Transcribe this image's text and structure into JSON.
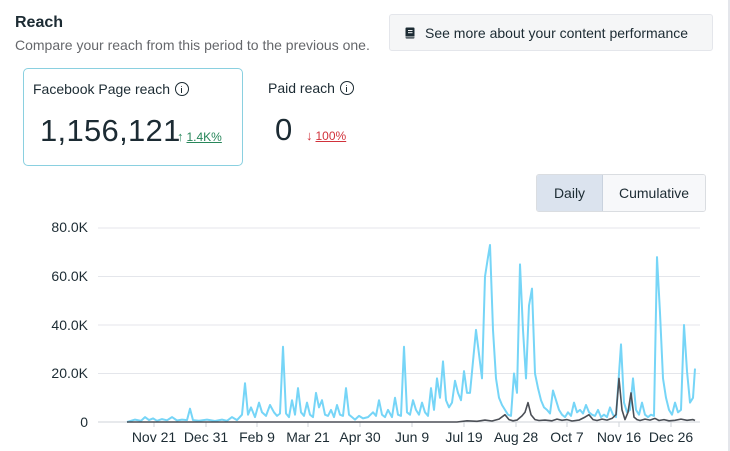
{
  "header": {
    "title": "Reach",
    "subtitle": "Compare your reach from this period to the previous one.",
    "see_more_label": "See more about your content performance"
  },
  "metrics": [
    {
      "label": "Facebook Page reach",
      "value": "1,156,121",
      "delta": "1.4K%",
      "direction": "up",
      "selected": true
    },
    {
      "label": "Paid reach",
      "value": "0",
      "delta": "100%",
      "direction": "down",
      "selected": false
    }
  ],
  "view_toggle": {
    "options": [
      "Daily",
      "Cumulative"
    ],
    "selected": "Daily"
  },
  "colors": {
    "current_series": "#76d5f7",
    "previous_series": "#4b4f56",
    "up": "#27865a",
    "down": "#d1323b"
  },
  "chart_data": {
    "type": "line",
    "y_ticks": [
      "80.0K",
      "60.0K",
      "40.0K",
      "20.0K",
      "0"
    ],
    "ylim": [
      0,
      80000
    ],
    "x_ticks": [
      "Nov 21",
      "Dec 31",
      "Feb 9",
      "Mar 21",
      "Apr 30",
      "Jun 9",
      "Jul 19",
      "Aug 28",
      "Oct 7",
      "Nov 16",
      "Dec 26"
    ],
    "grid": true,
    "series": [
      {
        "color": "#76d5f7",
        "points": [
          [
            0,
            0
          ],
          [
            8,
            1000
          ],
          [
            14,
            500
          ],
          [
            18,
            2000
          ],
          [
            22,
            800
          ],
          [
            26,
            1500
          ],
          [
            30,
            500
          ],
          [
            35,
            1200
          ],
          [
            40,
            700
          ],
          [
            45,
            2000
          ],
          [
            50,
            600
          ],
          [
            55,
            1000
          ],
          [
            60,
            800
          ],
          [
            63,
            5500
          ],
          [
            66,
            800
          ],
          [
            72,
            500
          ],
          [
            80,
            1000
          ],
          [
            88,
            400
          ],
          [
            95,
            1000
          ],
          [
            100,
            500
          ],
          [
            105,
            2000
          ],
          [
            110,
            800
          ],
          [
            115,
            3000
          ],
          [
            118,
            16000
          ],
          [
            121,
            3000
          ],
          [
            124,
            6000
          ],
          [
            128,
            2000
          ],
          [
            132,
            8000
          ],
          [
            135,
            4000
          ],
          [
            139,
            2500
          ],
          [
            143,
            7000
          ],
          [
            147,
            4000
          ],
          [
            150,
            2500
          ],
          [
            153,
            3500
          ],
          [
            156,
            31000
          ],
          [
            159,
            3500
          ],
          [
            162,
            2000
          ],
          [
            165,
            9000
          ],
          [
            168,
            3000
          ],
          [
            171,
            14000
          ],
          [
            174,
            4000
          ],
          [
            177,
            2500
          ],
          [
            180,
            8000
          ],
          [
            183,
            3000
          ],
          [
            186,
            2000
          ],
          [
            189,
            12000
          ],
          [
            192,
            6000
          ],
          [
            195,
            9000
          ],
          [
            198,
            3000
          ],
          [
            201,
            2500
          ],
          [
            204,
            5000
          ],
          [
            207,
            2000
          ],
          [
            210,
            7000
          ],
          [
            213,
            3000
          ],
          [
            216,
            2500
          ],
          [
            219,
            14000
          ],
          [
            222,
            3000
          ],
          [
            225,
            2000
          ],
          [
            228,
            1000
          ],
          [
            232,
            2500
          ],
          [
            236,
            1500
          ],
          [
            241,
            2000
          ],
          [
            246,
            4000
          ],
          [
            249,
            2500
          ],
          [
            252,
            9000
          ],
          [
            255,
            3000
          ],
          [
            258,
            2000
          ],
          [
            261,
            5000
          ],
          [
            265,
            2000
          ],
          [
            268,
            10000
          ],
          [
            271,
            3000
          ],
          [
            274,
            2500
          ],
          [
            277,
            31000
          ],
          [
            280,
            4000
          ],
          [
            283,
            3000
          ],
          [
            286,
            9000
          ],
          [
            289,
            5000
          ],
          [
            292,
            3000
          ],
          [
            295,
            8000
          ],
          [
            298,
            4000
          ],
          [
            301,
            2500
          ],
          [
            304,
            14000
          ],
          [
            307,
            5000
          ],
          [
            310,
            18000
          ],
          [
            313,
            10000
          ],
          [
            316,
            25000
          ],
          [
            319,
            9000
          ],
          [
            322,
            6000
          ],
          [
            325,
            8000
          ],
          [
            328,
            17000
          ],
          [
            331,
            12000
          ],
          [
            334,
            9000
          ],
          [
            337,
            21000
          ],
          [
            340,
            12000
          ],
          [
            343,
            12000
          ],
          [
            346,
            25000
          ],
          [
            349,
            38000
          ],
          [
            352,
            28000
          ],
          [
            355,
            18000
          ],
          [
            358,
            60000
          ],
          [
            361,
            68000
          ],
          [
            363,
            73000
          ],
          [
            366,
            38000
          ],
          [
            369,
            18000
          ],
          [
            372,
            10000
          ],
          [
            375,
            7000
          ],
          [
            378,
            5000
          ],
          [
            381,
            3000
          ],
          [
            384,
            2500
          ],
          [
            387,
            20000
          ],
          [
            390,
            12000
          ],
          [
            393,
            65000
          ],
          [
            396,
            38000
          ],
          [
            399,
            18000
          ],
          [
            402,
            48000
          ],
          [
            405,
            55000
          ],
          [
            408,
            20000
          ],
          [
            411,
            14000
          ],
          [
            414,
            9000
          ],
          [
            417,
            6000
          ],
          [
            420,
            5000
          ],
          [
            423,
            3500
          ],
          [
            426,
            13000
          ],
          [
            429,
            9000
          ],
          [
            432,
            5000
          ],
          [
            435,
            3000
          ],
          [
            438,
            2000
          ],
          [
            441,
            4000
          ],
          [
            444,
            2500
          ],
          [
            447,
            8000
          ],
          [
            450,
            4000
          ],
          [
            453,
            5000
          ],
          [
            456,
            3500
          ],
          [
            459,
            7000
          ],
          [
            462,
            4000
          ],
          [
            465,
            3000
          ],
          [
            468,
            2500
          ],
          [
            471,
            5000
          ],
          [
            474,
            2000
          ],
          [
            477,
            3000
          ],
          [
            480,
            2000
          ],
          [
            483,
            6000
          ],
          [
            486,
            3000
          ],
          [
            489,
            2000
          ],
          [
            491,
            14000
          ],
          [
            494,
            32000
          ],
          [
            497,
            8000
          ],
          [
            500,
            4000
          ],
          [
            503,
            5000
          ],
          [
            506,
            18000
          ],
          [
            509,
            5000
          ],
          [
            512,
            3000
          ],
          [
            515,
            8000
          ],
          [
            518,
            3000
          ],
          [
            521,
            2000
          ],
          [
            524,
            3000
          ],
          [
            527,
            2500
          ],
          [
            530,
            68000
          ],
          [
            533,
            45000
          ],
          [
            536,
            18000
          ],
          [
            539,
            10000
          ],
          [
            542,
            5000
          ],
          [
            545,
            3000
          ],
          [
            548,
            8000
          ],
          [
            551,
            4000
          ],
          [
            554,
            5000
          ],
          [
            557,
            40000
          ],
          [
            560,
            21000
          ],
          [
            563,
            8000
          ],
          [
            566,
            10000
          ],
          [
            568,
            22000
          ]
        ]
      },
      {
        "color": "#4b4f56",
        "points": [
          [
            0,
            0
          ],
          [
            330,
            0
          ],
          [
            340,
            500
          ],
          [
            350,
            300
          ],
          [
            358,
            800
          ],
          [
            365,
            400
          ],
          [
            372,
            1200
          ],
          [
            378,
            3000
          ],
          [
            382,
            1000
          ],
          [
            386,
            500
          ],
          [
            390,
            800
          ],
          [
            395,
            2500
          ],
          [
            398,
            4000
          ],
          [
            401,
            8000
          ],
          [
            404,
            3000
          ],
          [
            408,
            1000
          ],
          [
            412,
            600
          ],
          [
            418,
            800
          ],
          [
            425,
            500
          ],
          [
            430,
            1200
          ],
          [
            435,
            700
          ],
          [
            440,
            1000
          ],
          [
            445,
            400
          ],
          [
            452,
            800
          ],
          [
            458,
            2000
          ],
          [
            462,
            3000
          ],
          [
            466,
            1000
          ],
          [
            470,
            600
          ],
          [
            475,
            1200
          ],
          [
            480,
            800
          ],
          [
            485,
            1500
          ],
          [
            489,
            3000
          ],
          [
            492,
            18000
          ],
          [
            495,
            5000
          ],
          [
            498,
            1000
          ],
          [
            501,
            4000
          ],
          [
            504,
            12000
          ],
          [
            507,
            2000
          ],
          [
            510,
            1000
          ],
          [
            513,
            600
          ],
          [
            518,
            1200
          ],
          [
            523,
            800
          ],
          [
            528,
            1500
          ],
          [
            532,
            600
          ],
          [
            537,
            1000
          ],
          [
            542,
            500
          ],
          [
            548,
            700
          ],
          [
            554,
            1200
          ],
          [
            560,
            700
          ],
          [
            566,
            1000
          ],
          [
            568,
            600
          ]
        ]
      }
    ]
  }
}
